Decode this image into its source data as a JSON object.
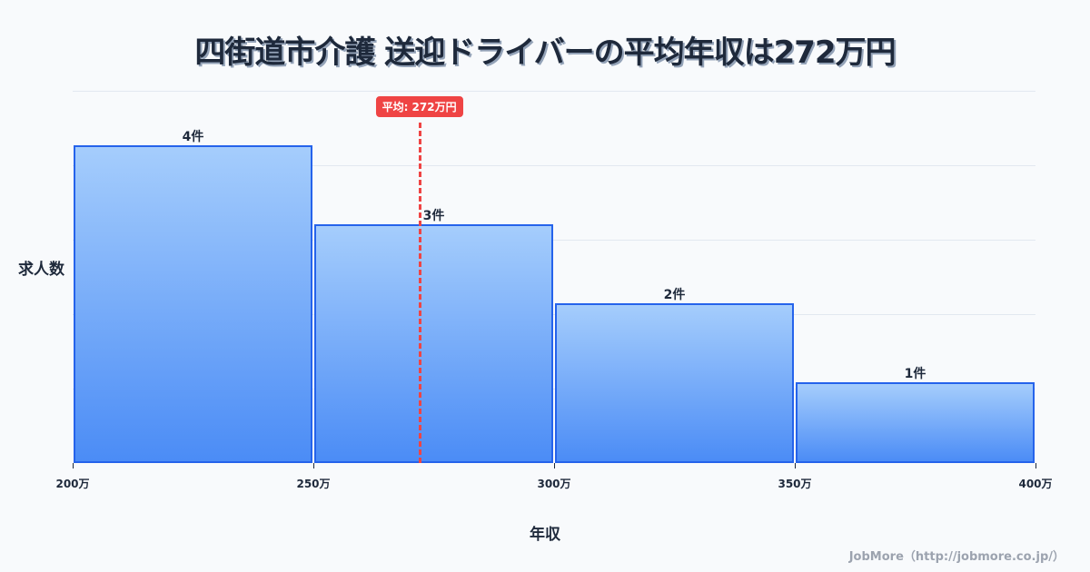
{
  "title": "四街道市介護 送迎ドライバーの平均年収は272万円",
  "mean_badge": "平均: 272万円",
  "ylabel": "求人数",
  "xlabel": "年収",
  "credit": "JobMore（http://jobmore.co.jp/）",
  "colors": {
    "bar_fill_top": "#a5cdfc",
    "bar_fill_bottom": "#4b8cf6",
    "bar_border": "#2563eb",
    "mean_line": "#ef4444",
    "text": "#1e293b",
    "background": "#f8fafc",
    "grid": "#e2e8f0"
  },
  "chart_data": {
    "type": "bar",
    "title": "四街道市介護 送迎ドライバーの平均年収は272万円",
    "xlabel": "年収",
    "ylabel": "求人数",
    "bins": [
      {
        "range": [
          200,
          250
        ],
        "count": 4,
        "label": "4件"
      },
      {
        "range": [
          250,
          300
        ],
        "count": 3,
        "label": "3件"
      },
      {
        "range": [
          300,
          350
        ],
        "count": 2,
        "label": "2件"
      },
      {
        "range": [
          350,
          400
        ],
        "count": 1,
        "label": "1件"
      }
    ],
    "categories": [
      "200-250万",
      "250-300万",
      "300-350万",
      "350-400万"
    ],
    "values": [
      4,
      3,
      2,
      1
    ],
    "x_ticks": [
      "200万",
      "250万",
      "300万",
      "350万",
      "400万"
    ],
    "x_tick_values": [
      200,
      250,
      300,
      350,
      400
    ],
    "xlim": [
      200,
      400
    ],
    "mean": 272,
    "mean_label": "平均: 272万円",
    "grid": true,
    "legend": "none"
  }
}
